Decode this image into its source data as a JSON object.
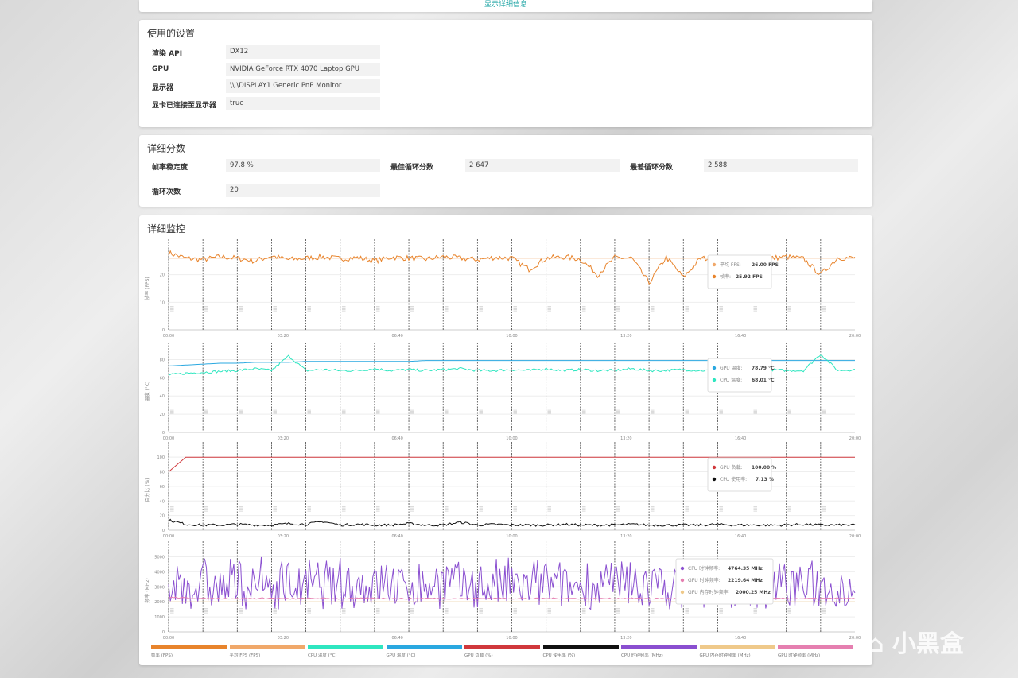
{
  "top": {
    "link": "显示详细信息"
  },
  "settings": {
    "title": "使用的设置",
    "rows": [
      {
        "label": "渲染 API",
        "value": "DX12"
      },
      {
        "label": "GPU",
        "value": "NVIDIA GeForce RTX 4070 Laptop GPU"
      },
      {
        "label": "显示器",
        "value": "\\\\.\\DISPLAY1 Generic PnP Monitor"
      },
      {
        "label": "显卡已连接至显示器",
        "value": "true"
      }
    ]
  },
  "scores": {
    "title": "详细分数",
    "items": [
      {
        "label": "帧率稳定度",
        "value": "97.8 %"
      },
      {
        "label": "最佳循环分数",
        "value": "2 647"
      },
      {
        "label": "最差循环分数",
        "value": "2 588"
      },
      {
        "label": "循环次数",
        "value": "20"
      }
    ]
  },
  "monitor": {
    "title": "详细监控"
  },
  "colors": {
    "fps": "#e8842c",
    "avg_fps": "#f0a86a",
    "cpu_temp": "#2ee6c0",
    "gpu_temp": "#2aa8e0",
    "gpu_load": "#d0383c",
    "cpu_util": "#111111",
    "cpu_clock": "#8a4fd0",
    "gpu_mem_clock": "#efc98a",
    "gpu_clock": "#e57fb0"
  },
  "watermark": "小黑盒",
  "chart_data": [
    {
      "type": "line",
      "ylabel": "帧率 (FPS)",
      "ylim": [
        0,
        30
      ],
      "yticks": [
        0,
        10,
        20
      ],
      "xticks": [
        "00:00",
        "03:20",
        "06:40",
        "10:00",
        "13:20",
        "16:40",
        "20:00"
      ],
      "x_unit": "minutes",
      "loop_markers_min": [
        0,
        1,
        2,
        3,
        4,
        5,
        6,
        7,
        8,
        9,
        10,
        11,
        12,
        13,
        14,
        15,
        16,
        17,
        18,
        19
      ],
      "series": [
        {
          "name": "帧率 (FPS)",
          "key": "fps",
          "values": [
            28,
            26,
            25.5,
            26.5,
            26,
            25,
            26.8,
            25.5,
            26,
            26.5,
            25.8,
            26.2,
            25,
            26.4,
            26,
            25.7,
            26.5,
            26,
            25.5,
            26.3,
            26,
            22,
            26,
            26.5,
            25.7,
            20,
            26.2,
            26,
            17,
            26.4,
            19,
            26,
            25.8,
            18,
            26.2,
            26,
            26.5,
            25.8,
            20,
            26.2,
            26
          ]
        },
        {
          "name": "平均 FPS (FPS)",
          "key": "avg_fps",
          "values": [
            26,
            26,
            26,
            26,
            26,
            26,
            26,
            26,
            26,
            26,
            26,
            26,
            26,
            26,
            26,
            26,
            26,
            26,
            26,
            26,
            26,
            26,
            26,
            26,
            26,
            26,
            26,
            26,
            26,
            26,
            26,
            26,
            26,
            26,
            26,
            26,
            26,
            26,
            26,
            26,
            26
          ]
        }
      ],
      "tooltip": [
        {
          "label": "平均 FPS",
          "value": "26.00 FPS",
          "key": "avg_fps"
        },
        {
          "label": "帧率",
          "value": "25.92 FPS",
          "key": "fps"
        }
      ]
    },
    {
      "type": "line",
      "ylabel": "温度 (°C)",
      "ylim": [
        0,
        90
      ],
      "yticks": [
        0,
        20,
        40,
        60,
        80
      ],
      "xticks": [
        "00:00",
        "03:20",
        "06:40",
        "10:00",
        "13:20",
        "16:40",
        "20:00"
      ],
      "series": [
        {
          "name": "GPU 温度 (°C)",
          "key": "gpu_temp",
          "values": [
            73,
            74,
            75,
            76,
            76,
            77,
            77,
            77,
            78,
            78,
            78,
            78,
            78,
            78,
            78,
            79,
            79,
            79,
            79,
            79,
            79,
            79,
            79,
            79,
            79,
            79,
            79,
            79,
            79,
            79,
            79,
            79,
            79,
            79,
            79,
            79,
            79,
            79,
            79,
            79,
            79
          ]
        },
        {
          "name": "CPU 温度 (°C)",
          "key": "cpu_temp",
          "values": [
            63,
            65,
            66,
            67,
            68,
            70,
            68,
            84,
            68,
            69,
            68,
            68,
            70,
            68,
            69,
            68,
            69,
            70,
            68,
            68,
            69,
            68,
            70,
            68,
            69,
            68,
            68,
            70,
            68,
            68,
            69,
            68,
            68,
            70,
            68,
            69,
            68,
            68,
            86,
            68,
            69
          ]
        }
      ],
      "tooltip": [
        {
          "label": "GPU 温度",
          "value": "78.79 °C",
          "key": "gpu_temp"
        },
        {
          "label": "CPU 温度",
          "value": "68.01 °C",
          "key": "cpu_temp"
        }
      ]
    },
    {
      "type": "line",
      "ylabel": "百分比 (%)",
      "ylim": [
        0,
        110
      ],
      "yticks": [
        0,
        20,
        40,
        60,
        80,
        100
      ],
      "xticks": [
        "00:00",
        "03:20",
        "06:40",
        "10:00",
        "13:20",
        "16:40",
        "20:00"
      ],
      "series": [
        {
          "name": "GPU 负载 (%)",
          "key": "gpu_load",
          "values": [
            80,
            100,
            100,
            100,
            100,
            100,
            100,
            100,
            100,
            100,
            100,
            100,
            100,
            100,
            100,
            100,
            100,
            100,
            100,
            100,
            100,
            100,
            100,
            100,
            100,
            100,
            100,
            100,
            100,
            100,
            100,
            100,
            100,
            100,
            100,
            100,
            100,
            100,
            100,
            100,
            100
          ]
        },
        {
          "name": "CPU 使用率 (%)",
          "key": "cpu_util",
          "values": [
            14,
            8,
            7,
            7,
            8,
            7,
            7,
            9,
            8,
            12,
            7,
            8,
            7,
            7,
            9,
            7,
            7,
            11,
            7,
            8,
            7,
            7,
            7,
            8,
            7,
            7,
            7,
            8,
            7,
            7,
            7,
            7,
            8,
            7,
            7,
            7,
            7,
            8,
            7,
            7,
            7
          ]
        }
      ],
      "tooltip": [
        {
          "label": "GPU 负载",
          "value": "100.00 %",
          "key": "gpu_load"
        },
        {
          "label": "CPU 使用率",
          "value": "7.13 %",
          "key": "cpu_util"
        }
      ]
    },
    {
      "type": "line",
      "ylabel": "频率 (MHz)",
      "ylim": [
        0,
        5500
      ],
      "yticks": [
        0,
        1000,
        2000,
        3000,
        4000,
        5000
      ],
      "xticks": [
        "00:00",
        "03:20",
        "06:40",
        "10:00",
        "13:20",
        "16:40",
        "20:00"
      ],
      "series": [
        {
          "name": "CPU 时钟频率 (MHz)",
          "key": "cpu_clock",
          "values": [
            4800,
            2500,
            4900,
            1800,
            4500,
            3000,
            5000,
            2200,
            4700,
            2600,
            4900,
            1900,
            4400,
            3100,
            4800,
            2300,
            4600,
            2800,
            5000,
            2000,
            4700,
            2500,
            4900,
            1900,
            4300,
            3200,
            4800,
            2100,
            4600,
            2700,
            5000,
            2000,
            4700,
            2400,
            4900,
            1800,
            4500,
            3000,
            4800,
            2200,
            4764
          ]
        },
        {
          "name": "GPU 内存时钟频率 (MHz)",
          "key": "gpu_mem_clock",
          "values": [
            2000,
            2000,
            2000,
            2000,
            2000,
            2000,
            2000,
            2000,
            2000,
            2000,
            2000,
            2000,
            2000,
            2000,
            2000,
            2000,
            2000,
            2000,
            2000,
            2000,
            2000,
            2000,
            2000,
            2000,
            2000,
            2000,
            2000,
            2000,
            2000,
            2000,
            2000,
            2000,
            2000,
            2000,
            2000,
            2000,
            2000,
            2000,
            2000,
            2000,
            2000
          ]
        },
        {
          "name": "GPU 时钟频率 (MHz)",
          "key": "gpu_clock",
          "values": [
            2300,
            2250,
            2220,
            2230,
            2210,
            2220,
            2240,
            2200,
            2220,
            2230,
            2210,
            2220,
            2240,
            2220,
            2210,
            2230,
            2220,
            2210,
            2220,
            2230,
            2220,
            2210,
            2220,
            2230,
            2220,
            2210,
            2220,
            2230,
            2220,
            2210,
            2220,
            2230,
            2220,
            2210,
            2220,
            2230,
            2220,
            2210,
            2220,
            2230,
            2220
          ]
        }
      ],
      "tooltip": [
        {
          "label": "CPU 时钟频率",
          "value": "4764.35 MHz",
          "key": "cpu_clock"
        },
        {
          "label": "GPU 时钟频率",
          "value": "2219.64 MHz",
          "key": "gpu_clock"
        },
        {
          "label": "GPU 内存时钟频率",
          "value": "2000.25 MHz",
          "key": "gpu_mem_clock"
        }
      ]
    }
  ],
  "legend": [
    {
      "label": "帧率 (FPS)",
      "key": "fps"
    },
    {
      "label": "平均 FPS (FPS)",
      "key": "avg_fps"
    },
    {
      "label": "CPU 温度 (°C)",
      "key": "cpu_temp"
    },
    {
      "label": "GPU 温度 (°C)",
      "key": "gpu_temp"
    },
    {
      "label": "GPU 负载 (%)",
      "key": "gpu_load"
    },
    {
      "label": "CPU 使用率 (%)",
      "key": "cpu_util"
    },
    {
      "label": "CPU 时钟频率 (MHz)",
      "key": "cpu_clock"
    },
    {
      "label": "GPU 内存时钟频率 (MHz)",
      "key": "gpu_mem_clock"
    },
    {
      "label": "GPU 时钟频率 (MHz)",
      "key": "gpu_clock"
    }
  ]
}
